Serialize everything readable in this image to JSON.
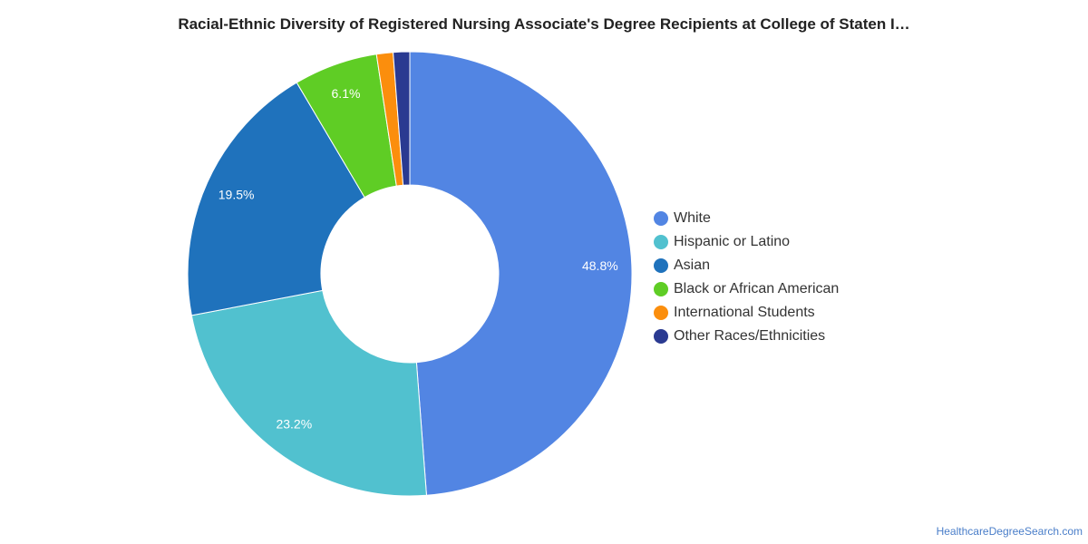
{
  "chart_data": {
    "type": "pie",
    "title": "Racial-Ethnic Diversity of Registered Nursing Associate's Degree Recipients at College of Staten I…",
    "donut": true,
    "legend_position": "right",
    "slices": [
      {
        "name": "White",
        "value": 48.8,
        "label": "48.8%",
        "color": "#5285e3"
      },
      {
        "name": "Hispanic or Latino",
        "value": 23.2,
        "label": "23.2%",
        "color": "#51c1cf"
      },
      {
        "name": "Asian",
        "value": 19.5,
        "label": "19.5%",
        "color": "#1f72bc"
      },
      {
        "name": "Black or African American",
        "value": 6.1,
        "label": "6.1%",
        "color": "#5fcd25"
      },
      {
        "name": "International Students",
        "value": 1.2,
        "label": "",
        "color": "#fb8e0d"
      },
      {
        "name": "Other Races/Ethnicities",
        "value": 1.2,
        "label": "",
        "color": "#2a3a91"
      }
    ]
  },
  "source_link": "HealthcareDegreeSearch.com"
}
